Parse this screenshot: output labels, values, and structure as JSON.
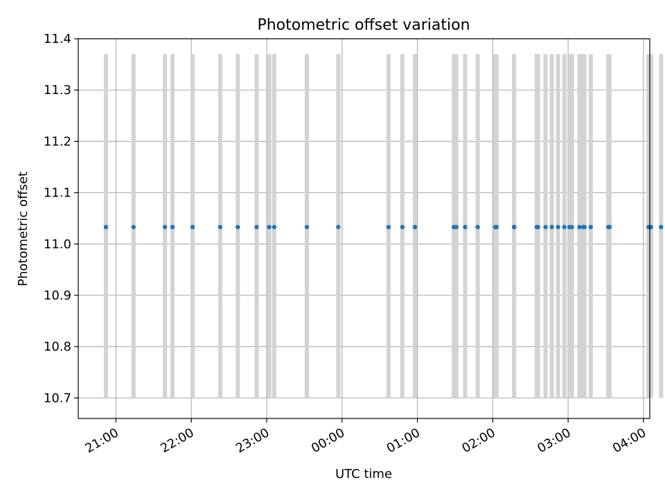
{
  "chart_data": {
    "type": "scatter",
    "title": "Photometric offset variation",
    "xlabel": "UTC time",
    "ylabel": "Photometric offset",
    "xlim": [
      "20:30",
      "04:05"
    ],
    "ylim": [
      10.66,
      11.4
    ],
    "y_ticks": [
      "10.7",
      "10.8",
      "10.9",
      "11.0",
      "11.1",
      "11.2",
      "11.3",
      "11.4"
    ],
    "x_ticks": [
      "21:00",
      "22:00",
      "23:00",
      "00:00",
      "01:00",
      "02:00",
      "03:00",
      "04:00"
    ],
    "grid": true,
    "point_color": "#1f77b4",
    "errorbar_color": "#d3d3d3",
    "errorbar_range": [
      10.7,
      11.37
    ],
    "x": [
      "20:52",
      "21:14",
      "21:39",
      "21:45",
      "22:01",
      "22:23",
      "22:37",
      "22:52",
      "23:02",
      "23:06",
      "23:32",
      "23:57",
      "00:37",
      "00:48",
      "00:58",
      "01:29",
      "01:31",
      "01:38",
      "01:48",
      "02:02",
      "02:03",
      "02:17",
      "02:17",
      "02:35",
      "02:36",
      "02:42",
      "02:47",
      "02:52",
      "02:57",
      "03:01",
      "03:03",
      "03:09",
      "03:12",
      "03:13",
      "03:18",
      "03:32",
      "03:33",
      "04:04",
      "04:05",
      "04:06",
      "04:14"
    ],
    "y": [
      11.033,
      11.033,
      11.033,
      11.033,
      11.033,
      11.033,
      11.033,
      11.033,
      11.033,
      11.033,
      11.033,
      11.033,
      11.033,
      11.033,
      11.033,
      11.033,
      11.033,
      11.033,
      11.033,
      11.033,
      11.033,
      11.033,
      11.033,
      11.033,
      11.033,
      11.033,
      11.033,
      11.033,
      11.033,
      11.033,
      11.033,
      11.033,
      11.033,
      11.033,
      11.033,
      11.033,
      11.033,
      11.033,
      11.033,
      11.033,
      11.033
    ]
  }
}
